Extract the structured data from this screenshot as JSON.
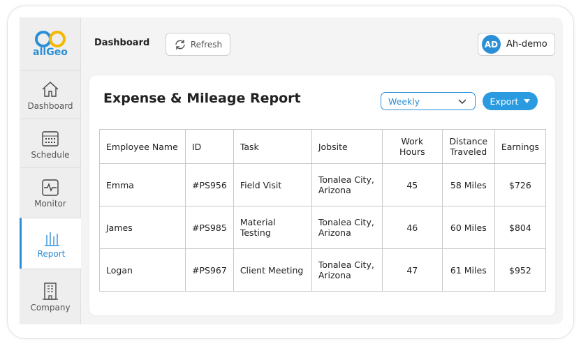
{
  "sidebar": {
    "logo": "allGeo",
    "items": [
      "Dashboard",
      "Schedule",
      "Monitor",
      "Report",
      "Company"
    ]
  },
  "header": {
    "title": "Dashboard",
    "refresh": "Refresh",
    "avatar": "AD",
    "user": "Ah-demo"
  },
  "report": {
    "title": "Expense & Mileage Report",
    "period": "Weekly",
    "export": "Export"
  },
  "table": {
    "columns": [
      "Employee Name",
      "ID",
      "Task",
      "Jobsite",
      "Work Hours",
      "Distance Traveled",
      "Earnings"
    ],
    "rows": [
      [
        "Emma",
        "#PS956",
        "Field Visit",
        "Tonalea City, Arizona",
        "45",
        "58 Miles",
        "$726"
      ],
      [
        "James",
        "#PS985",
        "Material Testing",
        "Tonalea City, Arizona",
        "46",
        "60 Miles",
        "$804"
      ],
      [
        "Logan",
        "#PS967",
        "Client Meeting",
        "Tonalea City, Arizona",
        "47",
        "61 Miles",
        "$952"
      ]
    ]
  }
}
